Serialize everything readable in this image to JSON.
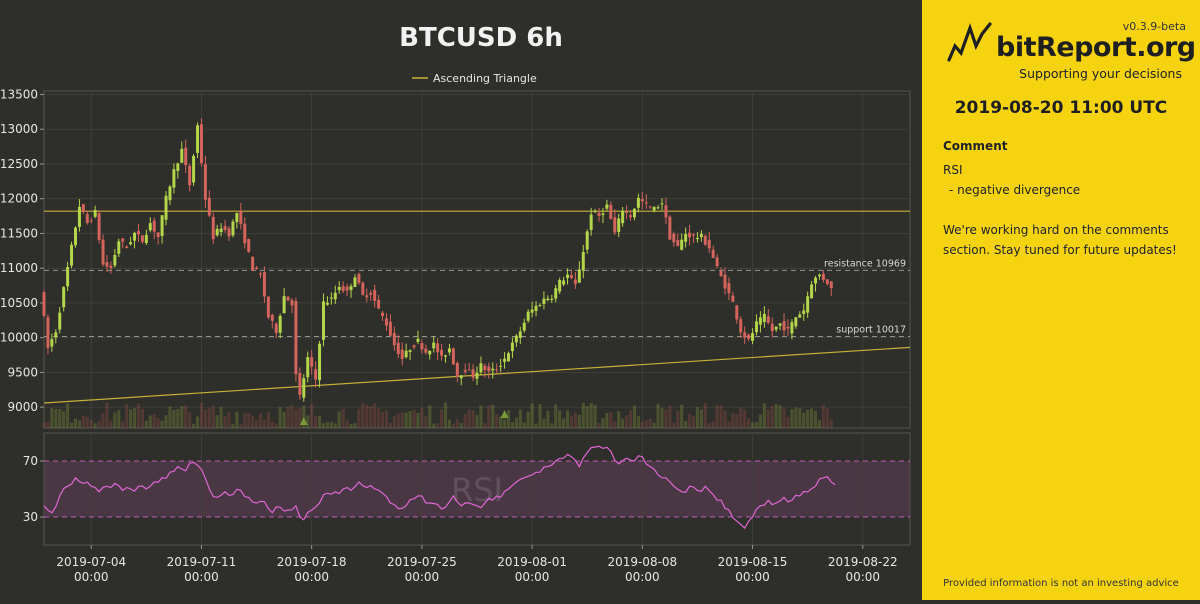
{
  "chart_data": {
    "type": "candlestick",
    "title": "BTCUSD 6h",
    "legend": {
      "entries": [
        "Ascending Triangle"
      ],
      "placement": "top-center"
    },
    "price_axis": {
      "ylim": [
        8700,
        13550
      ],
      "ticks": [
        "13500",
        "13000",
        "12500",
        "12000",
        "11500",
        "11000",
        "10500",
        "10000",
        "9500",
        "9000"
      ]
    },
    "rsi_axis": {
      "ylim": [
        10,
        90
      ],
      "ticks": [
        "70",
        "30"
      ],
      "label": "RSI",
      "band": [
        30,
        70
      ]
    },
    "x_axis": {
      "range": [
        "2019-07-01",
        "2019-08-25"
      ],
      "ticks": [
        {
          "date": "2019-07-04",
          "line1": "2019-07-04",
          "line2": "00:00"
        },
        {
          "date": "2019-07-11",
          "line1": "2019-07-11",
          "line2": "00:00"
        },
        {
          "date": "2019-07-18",
          "line1": "2019-07-18",
          "line2": "00:00"
        },
        {
          "date": "2019-07-25",
          "line1": "2019-07-25",
          "line2": "00:00"
        },
        {
          "date": "2019-08-01",
          "line1": "2019-08-01",
          "line2": "00:00"
        },
        {
          "date": "2019-08-08",
          "line1": "2019-08-08",
          "line2": "00:00"
        },
        {
          "date": "2019-08-15",
          "line1": "2019-08-15",
          "line2": "00:00"
        },
        {
          "date": "2019-08-22",
          "line1": "2019-08-22",
          "line2": "00:00"
        }
      ]
    },
    "levels": [
      {
        "name": "resistance",
        "value": 10969,
        "label": "resistance 10969"
      },
      {
        "name": "support",
        "value": 10017,
        "label": "support 10017"
      }
    ],
    "triangle": {
      "top_line": {
        "value": 11820
      },
      "bottom_line": [
        {
          "date": "2019-07-01",
          "value": 9060
        },
        {
          "date": "2019-08-25",
          "value": 9860
        }
      ]
    },
    "markers": [
      {
        "date": "2019-07-17T12:00",
        "value": 8800
      },
      {
        "date": "2019-07-30T06:00",
        "value": 8900
      }
    ],
    "price_path": [
      [
        "2019-07-01",
        10700
      ],
      [
        "2019-07-01T12:00",
        9850
      ],
      [
        "2019-07-02",
        10100
      ],
      [
        "2019-07-02T12:00",
        10700
      ],
      [
        "2019-07-03",
        11300
      ],
      [
        "2019-07-03T12:00",
        11900
      ],
      [
        "2019-07-04",
        11650
      ],
      [
        "2019-07-04T12:00",
        11800
      ],
      [
        "2019-07-05",
        11050
      ],
      [
        "2019-07-05T12:00",
        11000
      ],
      [
        "2019-07-06",
        11400
      ],
      [
        "2019-07-06T12:00",
        11300
      ],
      [
        "2019-07-07",
        11500
      ],
      [
        "2019-07-07T12:00",
        11400
      ],
      [
        "2019-07-08",
        11650
      ],
      [
        "2019-07-08T12:00",
        11450
      ],
      [
        "2019-07-09",
        12000
      ],
      [
        "2019-07-09T12:00",
        12400
      ],
      [
        "2019-07-10",
        12700
      ],
      [
        "2019-07-10T12:00",
        12200
      ],
      [
        "2019-07-11",
        13050
      ],
      [
        "2019-07-11T12:00",
        12000
      ],
      [
        "2019-07-12",
        11450
      ],
      [
        "2019-07-12T12:00",
        11600
      ],
      [
        "2019-07-13",
        11500
      ],
      [
        "2019-07-13T12:00",
        11800
      ],
      [
        "2019-07-14",
        11400
      ],
      [
        "2019-07-14T12:00",
        11000
      ],
      [
        "2019-07-15",
        10900
      ],
      [
        "2019-07-15T12:00",
        10300
      ],
      [
        "2019-07-16",
        10100
      ],
      [
        "2019-07-16T12:00",
        10600
      ],
      [
        "2019-07-17",
        10500
      ],
      [
        "2019-07-17T06:00",
        9450
      ],
      [
        "2019-07-17T12:00",
        9150
      ],
      [
        "2019-07-18",
        9700
      ],
      [
        "2019-07-18T12:00",
        9400
      ],
      [
        "2019-07-19",
        10500
      ],
      [
        "2019-07-19T12:00",
        10550
      ],
      [
        "2019-07-20",
        10750
      ],
      [
        "2019-07-20T12:00",
        10650
      ],
      [
        "2019-07-21",
        10900
      ],
      [
        "2019-07-21T12:00",
        10600
      ],
      [
        "2019-07-22",
        10650
      ],
      [
        "2019-07-22T12:00",
        10400
      ],
      [
        "2019-07-23",
        10200
      ],
      [
        "2019-07-23T12:00",
        9900
      ],
      [
        "2019-07-24",
        9700
      ],
      [
        "2019-07-24T12:00",
        9850
      ],
      [
        "2019-07-25",
        9950
      ],
      [
        "2019-07-25T12:00",
        9800
      ],
      [
        "2019-07-26",
        9900
      ],
      [
        "2019-07-26T12:00",
        9700
      ],
      [
        "2019-07-27",
        9850
      ],
      [
        "2019-07-27T12:00",
        9450
      ],
      [
        "2019-07-28",
        9550
      ],
      [
        "2019-07-28T12:00",
        9450
      ],
      [
        "2019-07-29",
        9600
      ],
      [
        "2019-07-29T12:00",
        9500
      ],
      [
        "2019-07-30",
        9550
      ],
      [
        "2019-07-30T12:00",
        9700
      ],
      [
        "2019-07-31",
        9900
      ],
      [
        "2019-07-31T12:00",
        10100
      ],
      [
        "2019-08-01",
        10350
      ],
      [
        "2019-08-01T12:00",
        10450
      ],
      [
        "2019-08-02",
        10550
      ],
      [
        "2019-08-02T12:00",
        10600
      ],
      [
        "2019-08-03",
        10800
      ],
      [
        "2019-08-03T12:00",
        10900
      ],
      [
        "2019-08-04",
        10750
      ],
      [
        "2019-08-04T12:00",
        11250
      ],
      [
        "2019-08-05",
        11800
      ],
      [
        "2019-08-05T12:00",
        11750
      ],
      [
        "2019-08-06",
        11900
      ],
      [
        "2019-08-06T12:00",
        11500
      ],
      [
        "2019-08-07",
        11850
      ],
      [
        "2019-08-07T12:00",
        11750
      ],
      [
        "2019-08-08",
        12000
      ],
      [
        "2019-08-08T12:00",
        11900
      ],
      [
        "2019-08-09",
        11850
      ],
      [
        "2019-08-09T12:00",
        11950
      ],
      [
        "2019-08-10",
        11450
      ],
      [
        "2019-08-10T12:00",
        11300
      ],
      [
        "2019-08-11",
        11500
      ],
      [
        "2019-08-11T12:00",
        11450
      ],
      [
        "2019-08-12",
        11450
      ],
      [
        "2019-08-12T12:00",
        11300
      ],
      [
        "2019-08-13",
        11000
      ],
      [
        "2019-08-13T12:00",
        10750
      ],
      [
        "2019-08-14",
        10500
      ],
      [
        "2019-08-14T12:00",
        10100
      ],
      [
        "2019-08-15",
        9950
      ],
      [
        "2019-08-15T12:00",
        10200
      ],
      [
        "2019-08-16",
        10300
      ],
      [
        "2019-08-16T12:00",
        10100
      ],
      [
        "2019-08-17",
        10200
      ],
      [
        "2019-08-17T12:00",
        10100
      ],
      [
        "2019-08-18",
        10300
      ],
      [
        "2019-08-18T12:00",
        10400
      ],
      [
        "2019-08-19",
        10800
      ],
      [
        "2019-08-19T12:00",
        10900
      ],
      [
        "2019-08-20",
        10800
      ],
      [
        "2019-08-20T06:00",
        10700
      ]
    ],
    "rsi_path": [
      [
        "2019-07-01",
        38
      ],
      [
        "2019-07-01T12:00",
        33
      ],
      [
        "2019-07-02",
        45
      ],
      [
        "2019-07-02T12:00",
        52
      ],
      [
        "2019-07-03",
        58
      ],
      [
        "2019-07-03T12:00",
        54
      ],
      [
        "2019-07-04",
        52
      ],
      [
        "2019-07-04T12:00",
        48
      ],
      [
        "2019-07-05",
        52
      ],
      [
        "2019-07-05T12:00",
        54
      ],
      [
        "2019-07-06",
        49
      ],
      [
        "2019-07-06T12:00",
        50
      ],
      [
        "2019-07-07",
        52
      ],
      [
        "2019-07-07T12:00",
        50
      ],
      [
        "2019-07-08",
        55
      ],
      [
        "2019-07-08T12:00",
        58
      ],
      [
        "2019-07-09",
        62
      ],
      [
        "2019-07-09T12:00",
        66
      ],
      [
        "2019-07-10",
        63
      ],
      [
        "2019-07-10T12:00",
        69
      ],
      [
        "2019-07-11",
        64
      ],
      [
        "2019-07-11T12:00",
        50
      ],
      [
        "2019-07-12",
        44
      ],
      [
        "2019-07-12T12:00",
        48
      ],
      [
        "2019-07-13",
        46
      ],
      [
        "2019-07-13T12:00",
        49
      ],
      [
        "2019-07-14",
        44
      ],
      [
        "2019-07-14T12:00",
        40
      ],
      [
        "2019-07-15",
        41
      ],
      [
        "2019-07-15T12:00",
        33
      ],
      [
        "2019-07-16",
        37
      ],
      [
        "2019-07-16T12:00",
        35
      ],
      [
        "2019-07-17",
        38
      ],
      [
        "2019-07-17T06:00",
        30
      ],
      [
        "2019-07-17T12:00",
        28
      ],
      [
        "2019-07-18",
        35
      ],
      [
        "2019-07-18T12:00",
        40
      ],
      [
        "2019-07-19",
        47
      ],
      [
        "2019-07-19T12:00",
        48
      ],
      [
        "2019-07-20",
        50
      ],
      [
        "2019-07-20T12:00",
        49
      ],
      [
        "2019-07-21",
        55
      ],
      [
        "2019-07-21T12:00",
        51
      ],
      [
        "2019-07-22",
        50
      ],
      [
        "2019-07-22T12:00",
        47
      ],
      [
        "2019-07-23",
        40
      ],
      [
        "2019-07-23T12:00",
        36
      ],
      [
        "2019-07-24",
        38
      ],
      [
        "2019-07-24T12:00",
        43
      ],
      [
        "2019-07-25",
        45
      ],
      [
        "2019-07-25T12:00",
        40
      ],
      [
        "2019-07-26",
        39
      ],
      [
        "2019-07-26T12:00",
        37
      ],
      [
        "2019-07-27",
        45
      ],
      [
        "2019-07-27T12:00",
        38
      ],
      [
        "2019-07-28",
        40
      ],
      [
        "2019-07-28T12:00",
        38
      ],
      [
        "2019-07-29",
        40
      ],
      [
        "2019-07-29T12:00",
        42
      ],
      [
        "2019-07-30",
        44
      ],
      [
        "2019-07-30T12:00",
        50
      ],
      [
        "2019-07-31",
        55
      ],
      [
        "2019-07-31T12:00",
        58
      ],
      [
        "2019-08-01",
        60
      ],
      [
        "2019-08-01T12:00",
        62
      ],
      [
        "2019-08-02",
        66
      ],
      [
        "2019-08-02T12:00",
        70
      ],
      [
        "2019-08-03",
        72
      ],
      [
        "2019-08-03T12:00",
        73
      ],
      [
        "2019-08-04",
        66
      ],
      [
        "2019-08-04T12:00",
        76
      ],
      [
        "2019-08-05",
        80
      ],
      [
        "2019-08-05T12:00",
        79
      ],
      [
        "2019-08-06",
        77
      ],
      [
        "2019-08-06T12:00",
        68
      ],
      [
        "2019-08-07",
        72
      ],
      [
        "2019-08-07T12:00",
        70
      ],
      [
        "2019-08-08",
        73
      ],
      [
        "2019-08-08T12:00",
        66
      ],
      [
        "2019-08-09",
        60
      ],
      [
        "2019-08-09T12:00",
        58
      ],
      [
        "2019-08-10",
        52
      ],
      [
        "2019-08-10T12:00",
        48
      ],
      [
        "2019-08-11",
        52
      ],
      [
        "2019-08-11T12:00",
        49
      ],
      [
        "2019-08-12",
        52
      ],
      [
        "2019-08-12T12:00",
        46
      ],
      [
        "2019-08-13",
        42
      ],
      [
        "2019-08-13T12:00",
        35
      ],
      [
        "2019-08-14",
        27
      ],
      [
        "2019-08-14T12:00",
        22
      ],
      [
        "2019-08-15",
        30
      ],
      [
        "2019-08-15T12:00",
        38
      ],
      [
        "2019-08-16",
        42
      ],
      [
        "2019-08-16T12:00",
        40
      ],
      [
        "2019-08-17",
        44
      ],
      [
        "2019-08-17T12:00",
        42
      ],
      [
        "2019-08-18",
        45
      ],
      [
        "2019-08-18T12:00",
        48
      ],
      [
        "2019-08-19",
        52
      ],
      [
        "2019-08-19T12:00",
        58
      ],
      [
        "2019-08-20",
        55
      ],
      [
        "2019-08-20T06:00",
        53
      ]
    ]
  },
  "colors": {
    "up": "#b4d64a",
    "down": "#d4645c",
    "triangle": "#c7b13a",
    "rsi": "#e066d4",
    "rsi_band": "#5c3f57",
    "marker": "#7a9a3a",
    "axis_text": "#e6e6e6",
    "grid": "#42423d"
  },
  "side": {
    "version": "v0.3.9-beta",
    "logo_text": "bitReport.org",
    "tagline": "Supporting your decisions",
    "datetime": "2019-08-20 11:00 UTC",
    "comment_title": "Comment",
    "comment_lines": [
      "RSI",
      "- negative divergence",
      "",
      "We're working hard on the comments section. Stay tuned for future updates!"
    ],
    "disclaimer": "Provided information is not an investing advice",
    "logo_icon": "chart-zigzag-icon"
  }
}
